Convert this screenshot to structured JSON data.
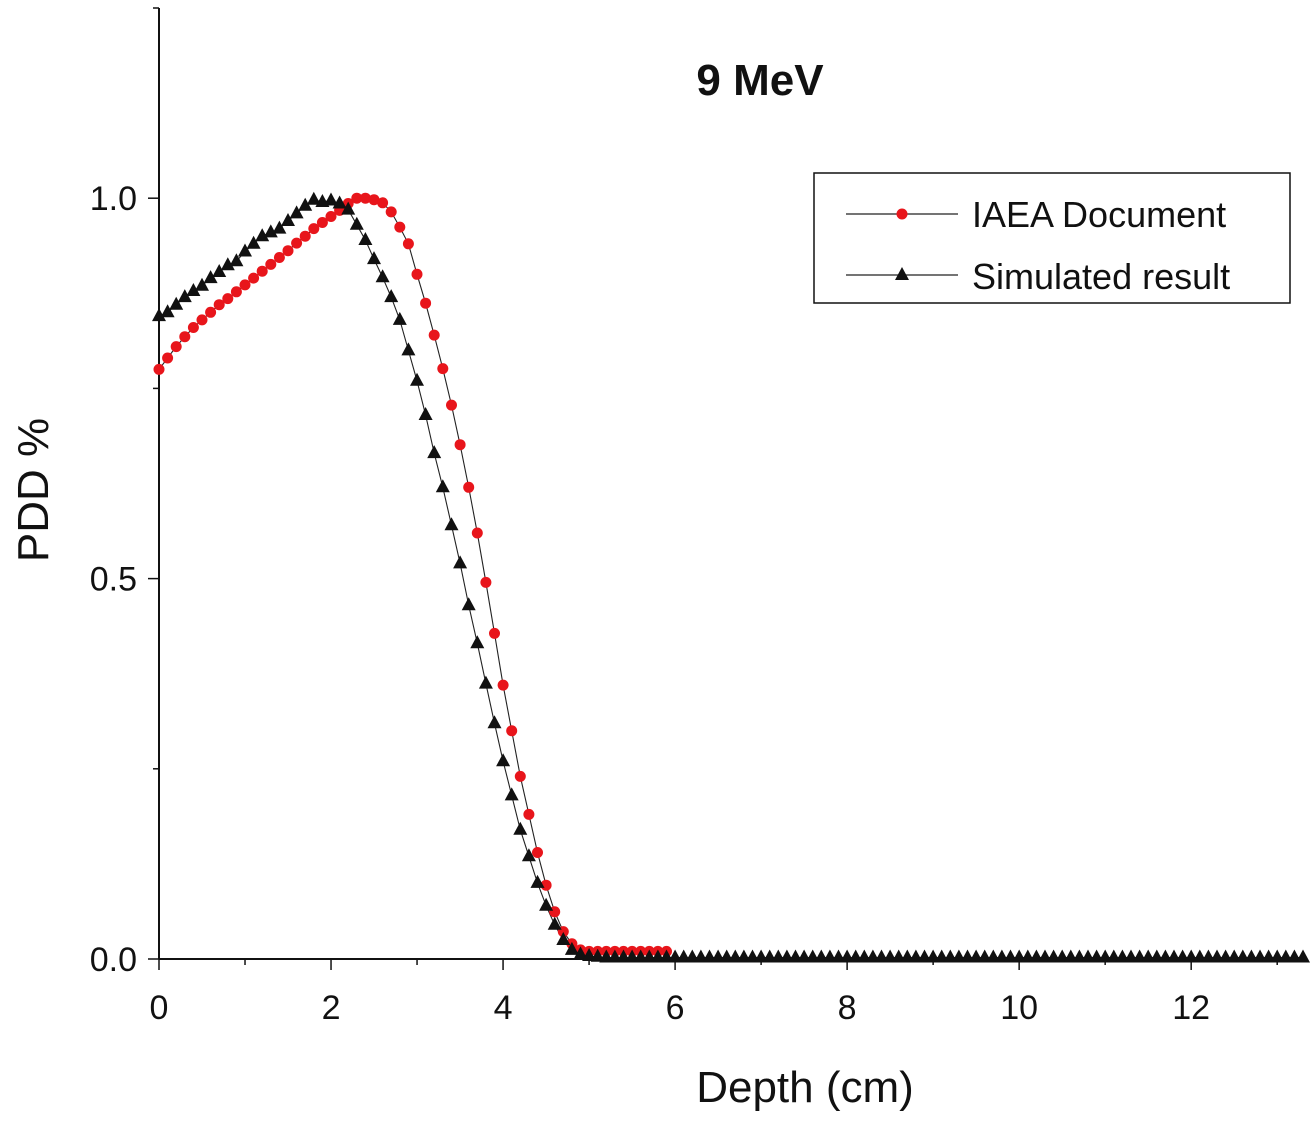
{
  "chart_data": {
    "type": "scatter",
    "title": "9 MeV",
    "xlabel": "Depth (cm)",
    "ylabel": "PDD %",
    "xlim": [
      0,
      13.3
    ],
    "ylim": [
      0,
      1.25
    ],
    "xticks": [
      0,
      2,
      4,
      6,
      8,
      10,
      12
    ],
    "xtick_labels": [
      "0",
      "2",
      "4",
      "6",
      "8",
      "10",
      "12"
    ],
    "yticks": [
      0.0,
      0.5,
      1.0
    ],
    "ytick_labels": [
      "0.0",
      "0.5",
      "1.0"
    ],
    "grid": false,
    "legend_position": "top-right",
    "series": [
      {
        "name": "IAEA Document",
        "marker": "circle",
        "color": "#e8151b",
        "line_color": "#222222",
        "x": [
          0.0,
          0.1,
          0.2,
          0.3,
          0.4,
          0.5,
          0.6,
          0.7,
          0.8,
          0.9,
          1.0,
          1.1,
          1.2,
          1.3,
          1.4,
          1.5,
          1.6,
          1.7,
          1.8,
          1.9,
          2.0,
          2.1,
          2.2,
          2.3,
          2.4,
          2.5,
          2.6,
          2.7,
          2.8,
          2.9,
          3.0,
          3.1,
          3.2,
          3.3,
          3.4,
          3.5,
          3.6,
          3.7,
          3.8,
          3.9,
          4.0,
          4.1,
          4.2,
          4.3,
          4.4,
          4.5,
          4.6,
          4.7,
          4.8,
          4.9,
          5.0,
          5.1,
          5.2,
          5.3,
          5.4,
          5.5,
          5.6,
          5.7,
          5.8,
          5.9
        ],
        "y": [
          0.775,
          0.79,
          0.805,
          0.818,
          0.83,
          0.84,
          0.85,
          0.86,
          0.868,
          0.877,
          0.886,
          0.895,
          0.904,
          0.913,
          0.922,
          0.931,
          0.941,
          0.95,
          0.96,
          0.968,
          0.976,
          0.984,
          0.993,
          1.0,
          1.0,
          0.998,
          0.994,
          0.982,
          0.962,
          0.94,
          0.9,
          0.862,
          0.82,
          0.776,
          0.728,
          0.676,
          0.62,
          0.56,
          0.495,
          0.428,
          0.36,
          0.3,
          0.24,
          0.19,
          0.14,
          0.097,
          0.062,
          0.036,
          0.02,
          0.012,
          0.01,
          0.01,
          0.01,
          0.01,
          0.01,
          0.01,
          0.01,
          0.01,
          0.01,
          0.01
        ]
      },
      {
        "name": "Simulated result",
        "marker": "triangle",
        "color": "#111111",
        "line_color": "#222222",
        "x": [
          0.0,
          0.1,
          0.2,
          0.3,
          0.4,
          0.5,
          0.6,
          0.7,
          0.8,
          0.9,
          1.0,
          1.1,
          1.2,
          1.3,
          1.4,
          1.5,
          1.6,
          1.7,
          1.8,
          1.9,
          2.0,
          2.1,
          2.2,
          2.3,
          2.4,
          2.5,
          2.6,
          2.7,
          2.8,
          2.9,
          3.0,
          3.1,
          3.2,
          3.3,
          3.4,
          3.5,
          3.6,
          3.7,
          3.8,
          3.9,
          4.0,
          4.1,
          4.2,
          4.3,
          4.4,
          4.5,
          4.6,
          4.7,
          4.8,
          4.9,
          5.0,
          5.1,
          5.2,
          5.3,
          5.4,
          5.5,
          5.6,
          5.7,
          5.8,
          5.9,
          6.0,
          6.1,
          6.2,
          6.3,
          6.4,
          6.5,
          6.6,
          6.7,
          6.8,
          6.9,
          7.0,
          7.1,
          7.2,
          7.3,
          7.4,
          7.5,
          7.6,
          7.7,
          7.8,
          7.9,
          8.0,
          8.1,
          8.2,
          8.3,
          8.4,
          8.5,
          8.6,
          8.7,
          8.8,
          8.9,
          9.0,
          9.1,
          9.2,
          9.3,
          9.4,
          9.5,
          9.6,
          9.7,
          9.8,
          9.9,
          10.0,
          10.1,
          10.2,
          10.3,
          10.4,
          10.5,
          10.6,
          10.7,
          10.8,
          10.9,
          11.0,
          11.1,
          11.2,
          11.3,
          11.4,
          11.5,
          11.6,
          11.7,
          11.8,
          11.9,
          12.0,
          12.1,
          12.2,
          12.3,
          12.4,
          12.5,
          12.6,
          12.7,
          12.8,
          12.9,
          13.0,
          13.1,
          13.2,
          13.3
        ],
        "y": [
          0.845,
          0.85,
          0.86,
          0.87,
          0.878,
          0.885,
          0.895,
          0.903,
          0.912,
          0.917,
          0.93,
          0.94,
          0.95,
          0.955,
          0.96,
          0.97,
          0.98,
          0.99,
          0.998,
          0.995,
          0.997,
          0.993,
          0.985,
          0.965,
          0.945,
          0.92,
          0.896,
          0.87,
          0.84,
          0.8,
          0.76,
          0.715,
          0.665,
          0.62,
          0.57,
          0.52,
          0.465,
          0.415,
          0.362,
          0.31,
          0.26,
          0.215,
          0.17,
          0.135,
          0.1,
          0.07,
          0.045,
          0.025,
          0.012,
          0.006,
          0.004,
          0.003,
          0.002,
          0.002,
          0.002,
          0.002,
          0.002,
          0.002,
          0.002,
          0.002,
          0.002,
          0.002,
          0.002,
          0.002,
          0.002,
          0.002,
          0.002,
          0.002,
          0.002,
          0.002,
          0.002,
          0.002,
          0.002,
          0.002,
          0.002,
          0.002,
          0.002,
          0.002,
          0.002,
          0.002,
          0.002,
          0.002,
          0.002,
          0.002,
          0.002,
          0.002,
          0.002,
          0.002,
          0.002,
          0.002,
          0.002,
          0.002,
          0.002,
          0.002,
          0.002,
          0.002,
          0.002,
          0.002,
          0.002,
          0.002,
          0.002,
          0.002,
          0.002,
          0.002,
          0.002,
          0.002,
          0.002,
          0.002,
          0.002,
          0.002,
          0.002,
          0.002,
          0.002,
          0.002,
          0.002,
          0.002,
          0.002,
          0.002,
          0.002,
          0.002,
          0.002,
          0.002,
          0.002,
          0.002,
          0.002,
          0.002,
          0.002,
          0.002,
          0.002,
          0.002,
          0.002,
          0.002,
          0.002,
          0.002
        ]
      }
    ]
  }
}
